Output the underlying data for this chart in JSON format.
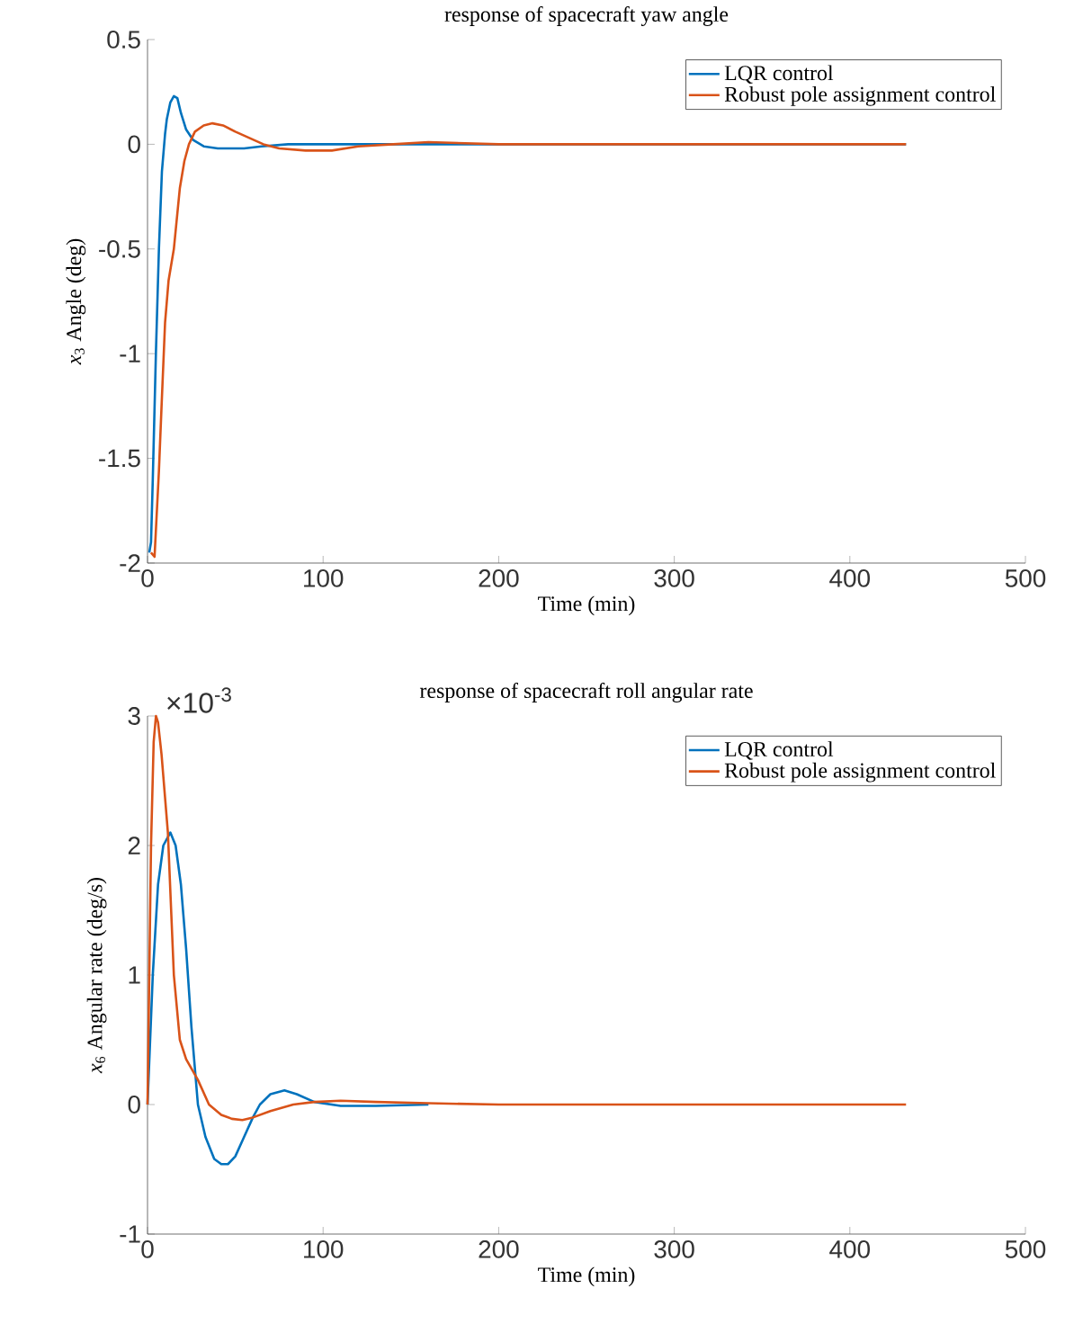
{
  "chart_data": [
    {
      "type": "line",
      "title": "response of spacecraft yaw angle",
      "xlabel": "Time (min)",
      "ylabel": "*x*$_{3}$ Angle (deg)",
      "xlim": [
        0,
        500
      ],
      "ylim": [
        -2,
        0.5
      ],
      "xticks": [
        0,
        100,
        200,
        300,
        400,
        500
      ],
      "yticks": [
        -2,
        -1.5,
        -1,
        -0.5,
        0,
        0.5
      ],
      "legend": "top right",
      "series": [
        {
          "name": "LQR control",
          "color": "#0072bd",
          "x": [
            1,
            2,
            3,
            4.8,
            6.5,
            8.2,
            10,
            11,
            13,
            15,
            17,
            19,
            22,
            26,
            32,
            40,
            47,
            55,
            65,
            80,
            100,
            130,
            200,
            300,
            432
          ],
          "values": [
            -1.95,
            -1.9,
            -1.6,
            -0.99,
            -0.5,
            -0.13,
            0.05,
            0.12,
            0.2,
            0.23,
            0.22,
            0.15,
            0.07,
            0.02,
            -0.01,
            -0.02,
            -0.02,
            -0.02,
            -0.01,
            0,
            0,
            0,
            0,
            0,
            0
          ]
        },
        {
          "name": "Robust pole assignment control",
          "color": "#d95319",
          "x": [
            2,
            4,
            6.5,
            8,
            10,
            12,
            15,
            18.4,
            21,
            23.6,
            27,
            32,
            37,
            43,
            50,
            58,
            66,
            75,
            90,
            105,
            120,
            140,
            160,
            200,
            260,
            432
          ],
          "values": [
            -1.95,
            -1.97,
            -1.56,
            -1.25,
            -0.85,
            -0.65,
            -0.5,
            -0.21,
            -0.08,
            0,
            0.06,
            0.09,
            0.1,
            0.09,
            0.06,
            0.03,
            0,
            -0.02,
            -0.03,
            -0.03,
            -0.01,
            0,
            0.01,
            0,
            0,
            0
          ]
        }
      ]
    },
    {
      "type": "line",
      "title": "response of spacecraft roll angular rate",
      "xlabel": "Time (min)",
      "ylabel": "*x*$_{6}$ Angular rate (deg/s)",
      "xlim": [
        0,
        500
      ],
      "ylim": [
        -1,
        3
      ],
      "xticks": [
        0,
        100,
        200,
        300,
        400,
        500
      ],
      "yticks": [
        -1,
        0,
        1,
        2,
        3
      ],
      "legend": "top right",
      "annotations": [
        "×10$^{-3}$"
      ],
      "series": [
        {
          "name": "LQR control",
          "color": "#0072bd",
          "x": [
            0,
            3,
            6,
            9,
            13,
            16,
            19,
            22,
            25,
            28.7,
            33,
            38,
            42,
            45.8,
            50,
            55,
            60,
            64,
            70,
            78,
            85,
            95,
            110,
            130,
            160
          ],
          "values": [
            0,
            1.0,
            1.7,
            2.0,
            2.1,
            2.0,
            1.7,
            1.2,
            0.6,
            0,
            -0.25,
            -0.42,
            -0.46,
            -0.46,
            -0.4,
            -0.25,
            -0.1,
            0,
            0.08,
            0.11,
            0.08,
            0.02,
            -0.01,
            -0.01,
            0
          ]
        },
        {
          "name": "Robust pole assignment control",
          "color": "#d95319",
          "x": [
            0,
            2,
            3.5,
            4.8,
            6,
            8,
            11.6,
            15,
            18.4,
            22,
            28.7,
            35,
            42,
            48,
            54,
            60,
            70,
            83,
            95,
            110,
            130,
            160,
            200,
            300,
            432
          ],
          "values": [
            0,
            2.0,
            2.8,
            3.0,
            2.95,
            2.7,
            2.1,
            1.0,
            0.5,
            0.35,
            0.19,
            0,
            -0.08,
            -0.11,
            -0.12,
            -0.1,
            -0.05,
            0,
            0.02,
            0.03,
            0.02,
            0.01,
            0,
            0,
            0
          ]
        }
      ]
    }
  ]
}
